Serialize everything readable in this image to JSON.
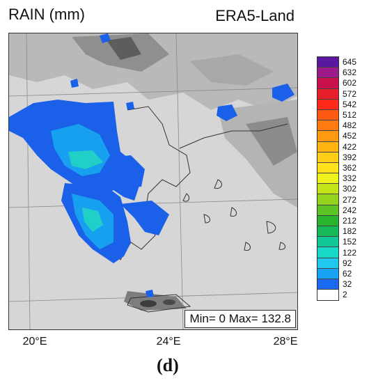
{
  "title_left": "RAIN (mm)",
  "title_right": "ERA5-Land",
  "minmax_text": "Min= 0 Max= 132.8",
  "caption": "(d)",
  "x_ticks": [
    "20°E",
    "24°E",
    "28°E"
  ],
  "legend": {
    "labels": [
      "645",
      "632",
      "602",
      "572",
      "542",
      "512",
      "482",
      "452",
      "422",
      "392",
      "362",
      "332",
      "302",
      "272",
      "242",
      "212",
      "182",
      "152",
      "122",
      "92",
      "62",
      "32",
      "2"
    ],
    "colors": [
      "#5a18a0",
      "#9c1a8a",
      "#c8104a",
      "#e81e2a",
      "#ff2a1a",
      "#ff5a14",
      "#ff7a10",
      "#ff9a10",
      "#ffb412",
      "#ffcc16",
      "#ffe21a",
      "#eef01a",
      "#c4e41a",
      "#94d41e",
      "#5cc424",
      "#28b42c",
      "#16b858",
      "#12c898",
      "#18d8c8",
      "#20c8ee",
      "#18a4f4",
      "#1a6af0",
      "#ffffff"
    ]
  },
  "colors": {
    "land": "#d9d9d9",
    "rain_light": "#1a60e8",
    "rain_mid": "#18a0f0",
    "rain_heavy": "#20d0c8"
  }
}
